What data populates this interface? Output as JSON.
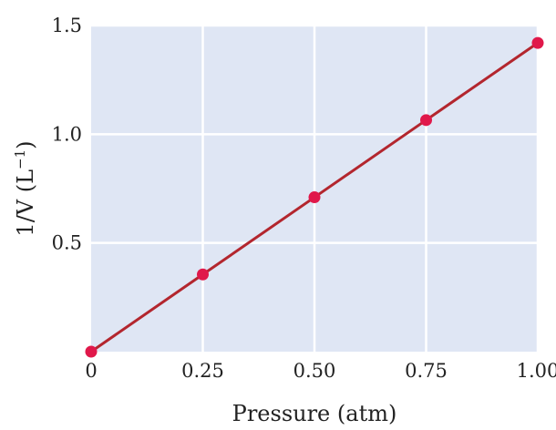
{
  "chart_data": {
    "type": "line",
    "xlabel": "Pressure (atm)",
    "ylabel_main": "1/V (L",
    "ylabel_sup": "−1",
    "ylabel_close": ")",
    "x_ticks": [
      {
        "value": 0,
        "label": "0"
      },
      {
        "value": 0.25,
        "label": "0.25"
      },
      {
        "value": 0.5,
        "label": "0.50"
      },
      {
        "value": 0.75,
        "label": "0.75"
      },
      {
        "value": 1.0,
        "label": "1.00"
      }
    ],
    "y_ticks": [
      {
        "value": 0.5,
        "label": "0.5"
      },
      {
        "value": 1.0,
        "label": "1.0"
      },
      {
        "value": 1.5,
        "label": "1.5"
      }
    ],
    "xlim": [
      0,
      1.0
    ],
    "ylim": [
      0,
      1.5
    ],
    "grid": true,
    "plot_background": "#dfe6f4",
    "line_color": "#b3262e",
    "marker_color": "#e0184a",
    "series": [
      {
        "x": [
          0,
          0.25,
          0.5,
          0.75,
          1.0
        ],
        "y": [
          0,
          0.355,
          0.71,
          1.065,
          1.42
        ]
      }
    ]
  }
}
